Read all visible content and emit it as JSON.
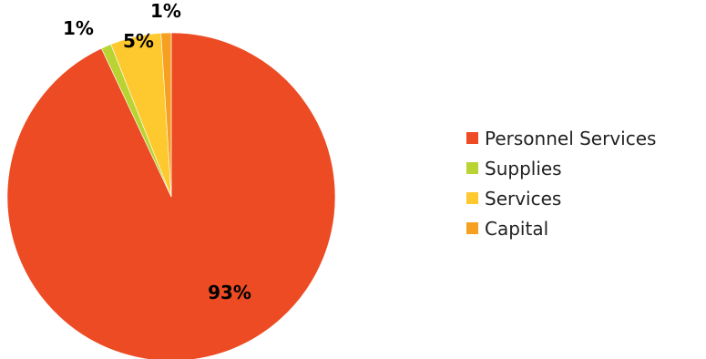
{
  "chart_data": {
    "type": "pie",
    "slices": [
      {
        "label": "Personnel Services",
        "value": 93,
        "value_label": "93%",
        "color": "#EC4B23"
      },
      {
        "label": "Supplies",
        "value": 1,
        "value_label": "1%",
        "color": "#B9D432"
      },
      {
        "label": "Services",
        "value": 5,
        "value_label": "5%",
        "color": "#FDC92E"
      },
      {
        "label": "Capital",
        "value": 1,
        "value_label": "1%",
        "color": "#F6A022"
      }
    ],
    "start": "top",
    "direction": "clockwise",
    "legend_position": "right"
  }
}
